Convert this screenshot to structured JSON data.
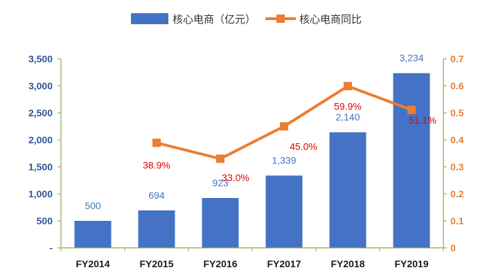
{
  "chart_data": {
    "type": "bar",
    "categories": [
      "FY2014",
      "FY2015",
      "FY2016",
      "FY2017",
      "FY2018",
      "FY2019"
    ],
    "series": [
      {
        "name": "核心电商（亿元）",
        "type": "bar",
        "axis": "left",
        "values": [
          500,
          694,
          923,
          1339,
          2140,
          3234
        ],
        "labels": [
          "500",
          "694",
          "923",
          "1,339",
          "2,140",
          "3,234"
        ],
        "color": "#4472C4",
        "label_color": "#4472C4"
      },
      {
        "name": "核心电商同比",
        "type": "line",
        "axis": "right",
        "values": [
          null,
          0.389,
          0.33,
          0.45,
          0.599,
          0.511
        ],
        "labels": [
          "",
          "38.9%",
          "33.0%",
          "45.0%",
          "59.9%",
          "51.1%"
        ],
        "color": "#ED7D31",
        "label_color": "#E00000"
      }
    ],
    "y_left": {
      "lim": [
        0,
        3500
      ],
      "ticks": [
        0,
        500,
        1000,
        1500,
        2000,
        2500,
        3000,
        3500
      ],
      "tick_labels": [
        "-",
        "500",
        "1,000",
        "1,500",
        "2,000",
        "2,500",
        "3,000",
        "3,500"
      ],
      "color": "#2F5597"
    },
    "y_right": {
      "lim": [
        0,
        0.7
      ],
      "ticks": [
        0,
        0.1,
        0.2,
        0.3,
        0.4,
        0.5,
        0.6,
        0.7
      ],
      "tick_labels": [
        "0",
        "0.1",
        "0.2",
        "0.3",
        "0.4",
        "0.5",
        "0.6",
        "0.7"
      ],
      "color": "#ED7D31"
    },
    "legend": {
      "position": "top-center",
      "entries": [
        "核心电商（亿元）",
        "核心电商同比"
      ]
    },
    "grid": false,
    "axis_line_color": "#8FA34E"
  }
}
